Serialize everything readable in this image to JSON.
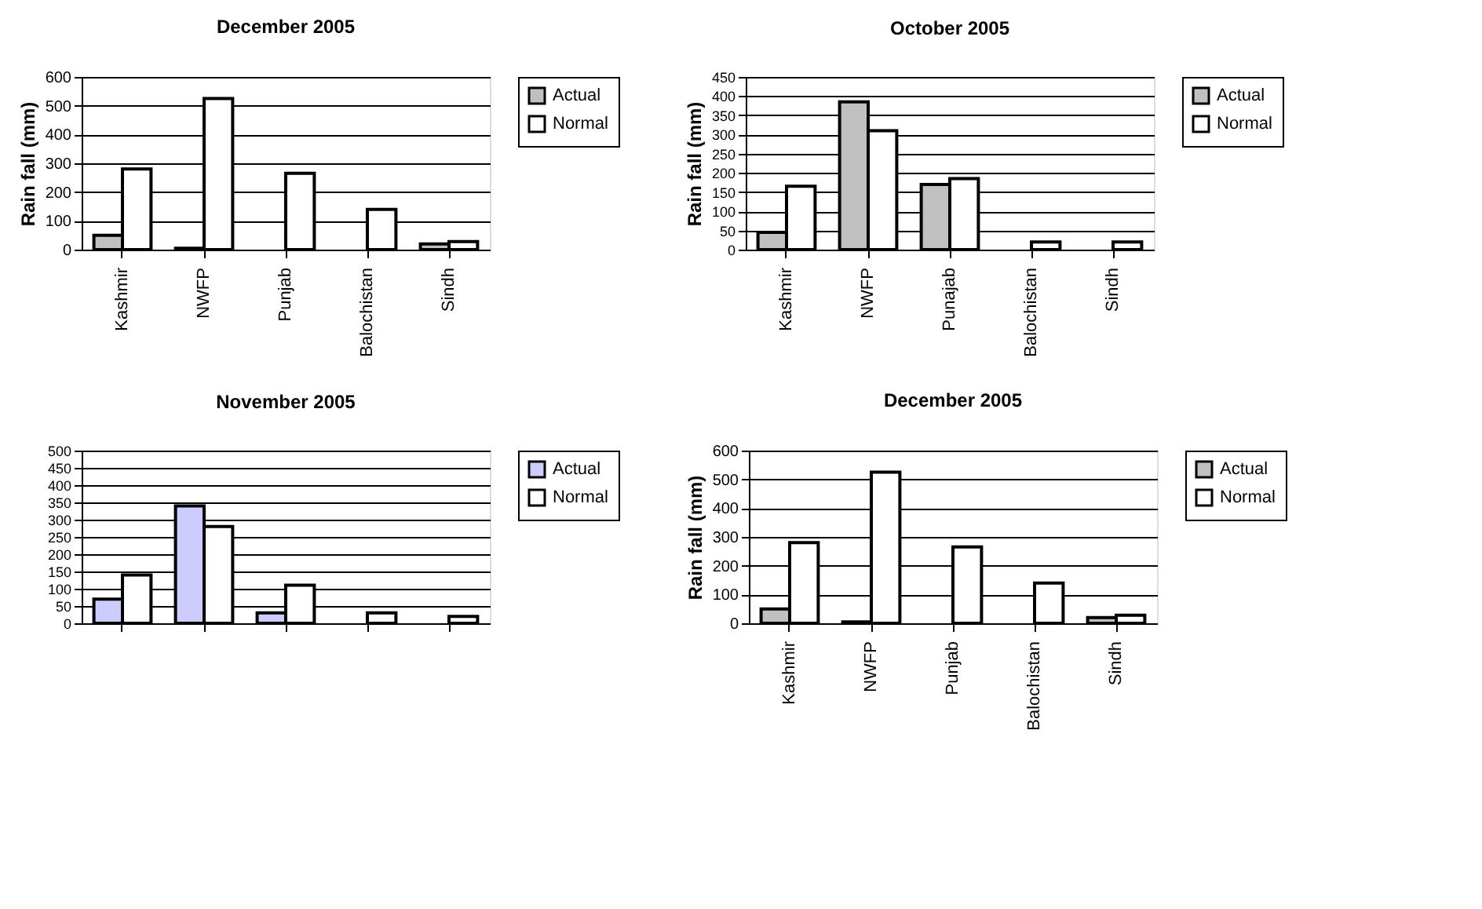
{
  "chart_data": [
    {
      "type": "bar",
      "title": "December 2005",
      "ylabel": "Rain fall (mm)",
      "categories": [
        "Kashmir",
        "NWFP",
        "Punjab",
        "Balochistan",
        "Sindh"
      ],
      "series": [
        {
          "name": "Actual",
          "color": "#c0c0c0",
          "values": [
            50,
            5,
            0,
            0,
            20
          ]
        },
        {
          "name": "Normal",
          "color": "#ffffff",
          "values": [
            280,
            525,
            265,
            140,
            28
          ]
        }
      ],
      "ylim": [
        0,
        600
      ],
      "yticks": [
        0,
        100,
        200,
        300,
        400,
        500,
        600
      ],
      "grid": "y",
      "legend": "right"
    },
    {
      "type": "bar",
      "title": "October 2005",
      "ylabel": "Rain fall (mm)",
      "categories": [
        "Kashmir",
        "NWFP",
        "Punajab",
        "Balochistan",
        "Sindh"
      ],
      "series": [
        {
          "name": "Actual",
          "color": "#c0c0c0",
          "values": [
            45,
            385,
            170,
            0,
            0
          ]
        },
        {
          "name": "Normal",
          "color": "#ffffff",
          "values": [
            165,
            310,
            185,
            20,
            20
          ]
        }
      ],
      "ylim": [
        0,
        450
      ],
      "yticks": [
        0,
        50,
        100,
        150,
        200,
        250,
        300,
        350,
        400,
        450
      ],
      "grid": "y",
      "legend": "right"
    },
    {
      "type": "bar",
      "title": "November 2005",
      "categories": [
        null,
        null,
        null,
        null,
        null
      ],
      "series": [
        {
          "name": "Actual",
          "color": "#ccccff",
          "values": [
            70,
            340,
            30,
            0,
            0
          ]
        },
        {
          "name": "Normal",
          "color": "#ffffff",
          "values": [
            140,
            280,
            110,
            30,
            20
          ]
        }
      ],
      "ylim": [
        0,
        500
      ],
      "yticks": [
        0,
        50,
        100,
        150,
        200,
        250,
        300,
        350,
        400,
        450,
        500
      ],
      "grid": "y",
      "legend": "right",
      "tick_labels": "y"
    },
    {
      "type": "bar",
      "title": "December 2005",
      "ylabel": "Rain fall (mm)",
      "categories": [
        "Kashmir",
        "NWFP",
        "Punjab",
        "Balochistan",
        "Sindh"
      ],
      "series": [
        {
          "name": "Actual",
          "color": "#c0c0c0",
          "values": [
            50,
            5,
            0,
            0,
            20
          ]
        },
        {
          "name": "Normal",
          "color": "#ffffff",
          "values": [
            280,
            525,
            265,
            140,
            28
          ]
        }
      ],
      "ylim": [
        0,
        600
      ],
      "yticks": [
        0,
        100,
        200,
        300,
        400,
        500,
        600
      ],
      "grid": "y",
      "legend": "right"
    }
  ]
}
